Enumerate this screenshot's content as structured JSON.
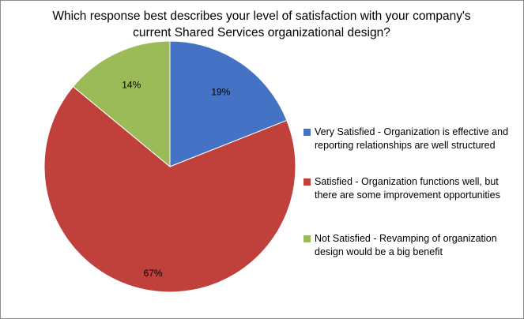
{
  "chart_data": {
    "type": "pie",
    "title_line1": "Which response best describes your level of satisfaction with your company's",
    "title_line2": "current Shared Services organizational design?",
    "categories": [
      "Very Satisfied - Organization is effective and reporting relationships are well structured",
      "Satisfied - Organization functions well, but there are some improvement opportunities",
      "Not Satisfied - Revamping of organization design would be a big benefit"
    ],
    "legend": [
      {
        "line1": "Very Satisfied - Organization is effective and",
        "line2": "reporting relationships are well structured"
      },
      {
        "line1": "Satisfied - Organization functions well, but",
        "line2": "there are some improvement opportunities"
      },
      {
        "line1": "Not Satisfied - Revamping of organization",
        "line2": "design would be a big benefit"
      }
    ],
    "values": [
      19,
      67,
      14
    ],
    "data_labels": [
      "19%",
      "67%",
      "14%"
    ],
    "colors": [
      "#4472c4",
      "#c0403c",
      "#9bbb59"
    ],
    "legend_placement": "right",
    "start_angle": "12 o'clock, clockwise"
  }
}
